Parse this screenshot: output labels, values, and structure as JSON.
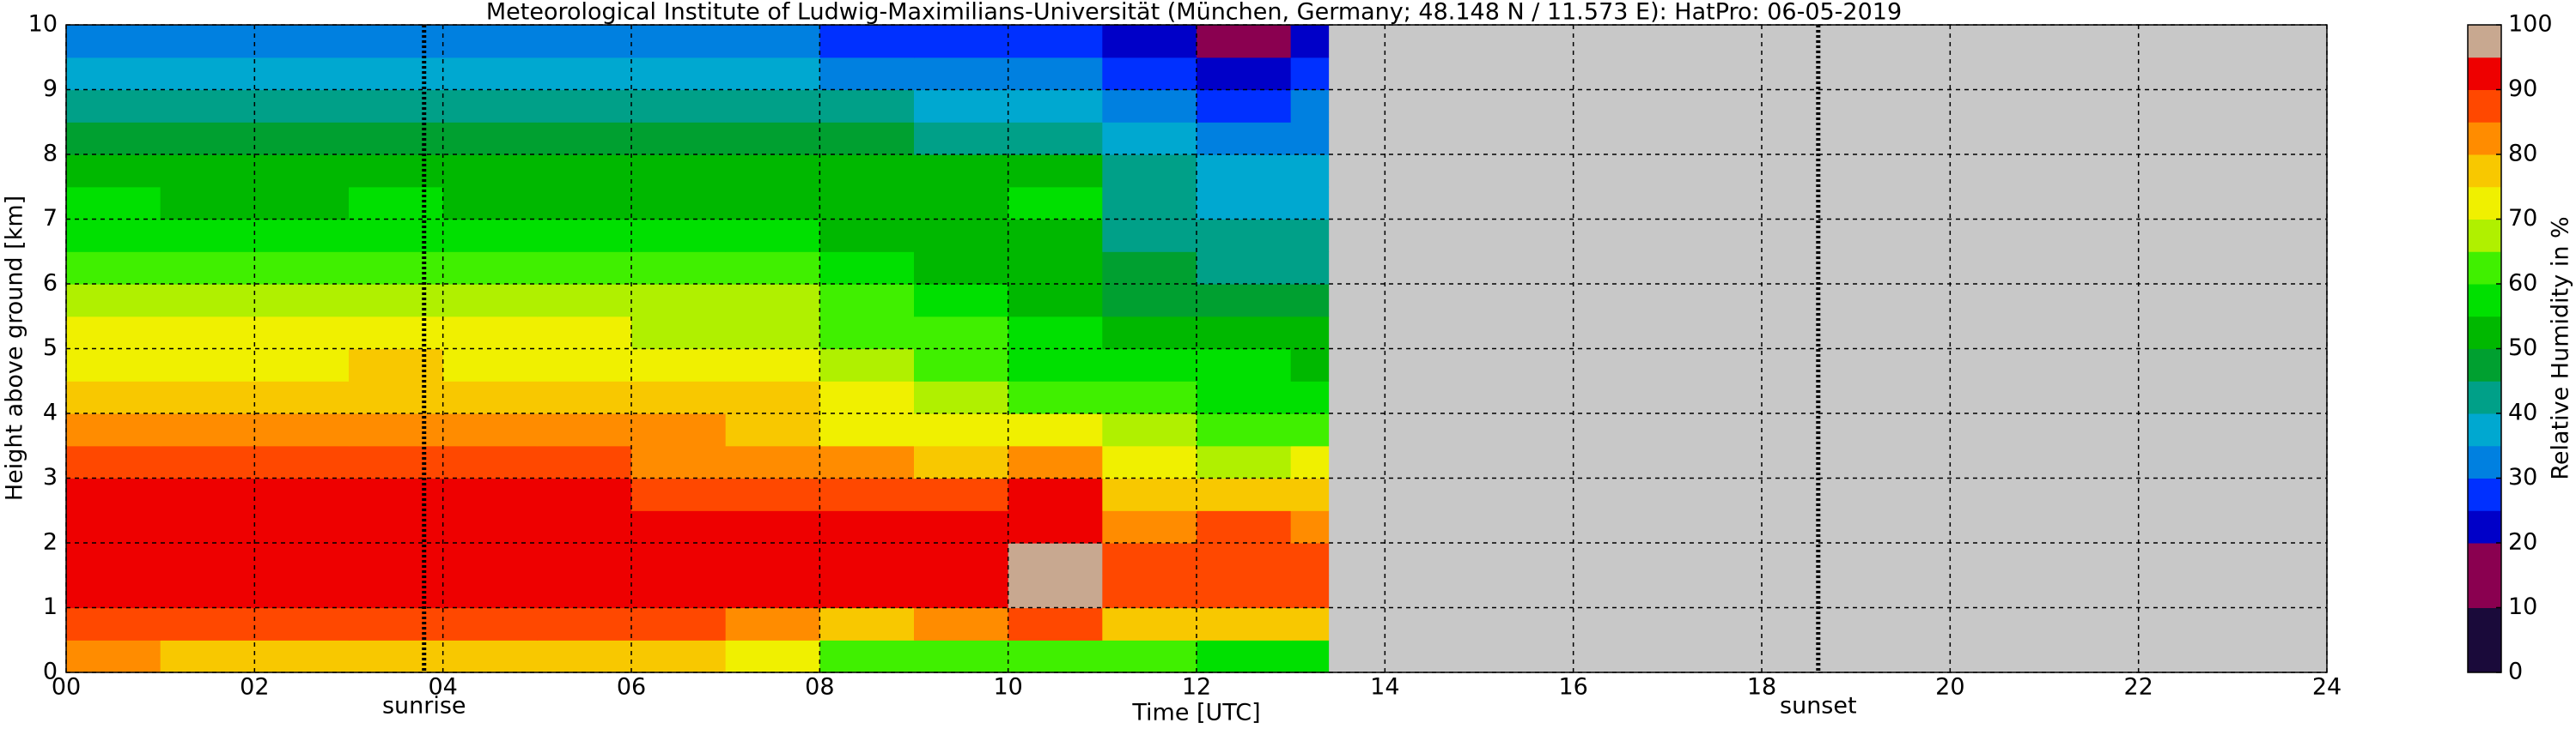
{
  "chart_data": {
    "type": "heatmap",
    "title": "Meteorological Institute of Ludwig-Maximilians-Universität (München, Germany; 48.148 N / 11.573 E):    HatPro: 06-05-2019",
    "xlabel": "Time [UTC]",
    "ylabel": "Height above ground [km]",
    "colorbar_label": "Relative Humidity in %",
    "xbins": [
      0,
      1,
      2,
      3,
      4,
      5,
      6,
      7,
      8,
      9,
      10,
      11,
      12,
      13,
      13.4
    ],
    "ybins": [
      0,
      0.5,
      1,
      1.5,
      2,
      2.5,
      3,
      3.5,
      4,
      4.5,
      5,
      5.5,
      6,
      6.5,
      7,
      7.5,
      8,
      8.5,
      9,
      9.5,
      10
    ],
    "values": [
      [
        80,
        78,
        76,
        79,
        76,
        75,
        78,
        72,
        62,
        60,
        60,
        60,
        58,
        58
      ],
      [
        88,
        86,
        85,
        88,
        86,
        85,
        86,
        84,
        78,
        80,
        88,
        78,
        78,
        76
      ],
      [
        92,
        91,
        90,
        92,
        91,
        91,
        90,
        90,
        92,
        94,
        95,
        85,
        88,
        86
      ],
      [
        94,
        93,
        93,
        94,
        93,
        92,
        92,
        91,
        94,
        94,
        95,
        85,
        88,
        88
      ],
      [
        93,
        93,
        93,
        94,
        93,
        92,
        91,
        90,
        93,
        92,
        94,
        80,
        85,
        84
      ],
      [
        91,
        92,
        92,
        92,
        91,
        90,
        88,
        87,
        88,
        86,
        92,
        76,
        76,
        78
      ],
      [
        86,
        87,
        87,
        88,
        86,
        85,
        84,
        83,
        80,
        78,
        82,
        70,
        65,
        70
      ],
      [
        82,
        83,
        82,
        84,
        82,
        81,
        80,
        79,
        74,
        70,
        72,
        66,
        60,
        62
      ],
      [
        78,
        78,
        78,
        79,
        78,
        77,
        76,
        75,
        70,
        66,
        62,
        60,
        57,
        57
      ],
      [
        74,
        74,
        74,
        75,
        74,
        73,
        72,
        71,
        67,
        63,
        58,
        56,
        55,
        54
      ],
      [
        71,
        71,
        70,
        72,
        71,
        70,
        69,
        68,
        64,
        60,
        56,
        52,
        50,
        50
      ],
      [
        68,
        67,
        67,
        69,
        68,
        67,
        66,
        65,
        61,
        58,
        54,
        48,
        46,
        46
      ],
      [
        63,
        62,
        62,
        64,
        63,
        62,
        61,
        60,
        56,
        54,
        52,
        46,
        43,
        43
      ],
      [
        57,
        56,
        56,
        58,
        57,
        56,
        55,
        55,
        54,
        52,
        52,
        44,
        41,
        40
      ],
      [
        55,
        54,
        54,
        55,
        54,
        54,
        53,
        53,
        53,
        53,
        55,
        42,
        38,
        38
      ],
      [
        53,
        52,
        52,
        53,
        52,
        52,
        52,
        51,
        52,
        52,
        53,
        40,
        35,
        36
      ],
      [
        49,
        49,
        48,
        49,
        48,
        48,
        48,
        47,
        46,
        44,
        42,
        36,
        31,
        33
      ],
      [
        44,
        44,
        43,
        44,
        43,
        43,
        43,
        42,
        40,
        36,
        36,
        33,
        28,
        30
      ],
      [
        38,
        38,
        37,
        38,
        37,
        37,
        37,
        36,
        34,
        30,
        30,
        28,
        23,
        27
      ],
      [
        32,
        32,
        31,
        32,
        31,
        31,
        31,
        30,
        28,
        26,
        26,
        24,
        18,
        22
      ]
    ],
    "colors": [
      "#1a0a3a",
      "#1a0a3a",
      "#8a0050",
      "#8a0050",
      "#0000c8",
      "#0030ff",
      "#0080e0",
      "#00a8d0",
      "#00a088",
      "#00a030",
      "#00b800",
      "#00e000",
      "#40f000",
      "#b0f000",
      "#f0f000",
      "#f8c800",
      "#ff8c00",
      "#ff4800",
      "#ee0000",
      "#c8a890"
    ],
    "xlim": [
      0,
      24
    ],
    "xticks": [
      {
        "value": 0,
        "label": "00"
      },
      {
        "value": 2,
        "label": "02"
      },
      {
        "value": 4,
        "label": "04"
      },
      {
        "value": 6,
        "label": "06"
      },
      {
        "value": 8,
        "label": "08"
      },
      {
        "value": 10,
        "label": "10"
      },
      {
        "value": 12,
        "label": "12"
      },
      {
        "value": 14,
        "label": "14"
      },
      {
        "value": 16,
        "label": "16"
      },
      {
        "value": 18,
        "label": "18"
      },
      {
        "value": 20,
        "label": "20"
      },
      {
        "value": 22,
        "label": "22"
      },
      {
        "value": 24,
        "label": "24"
      }
    ],
    "ylim": [
      0,
      10
    ],
    "yticks": [
      0,
      1,
      2,
      3,
      4,
      5,
      6,
      7,
      8,
      9,
      10
    ],
    "clim": [
      0,
      100
    ],
    "cticks": [
      0,
      10,
      20,
      30,
      40,
      50,
      60,
      70,
      80,
      90,
      100
    ],
    "grid": true,
    "annotations": [
      {
        "label": "sunrise",
        "x": 3.8
      },
      {
        "label": "sunset",
        "x": 18.6
      }
    ]
  }
}
